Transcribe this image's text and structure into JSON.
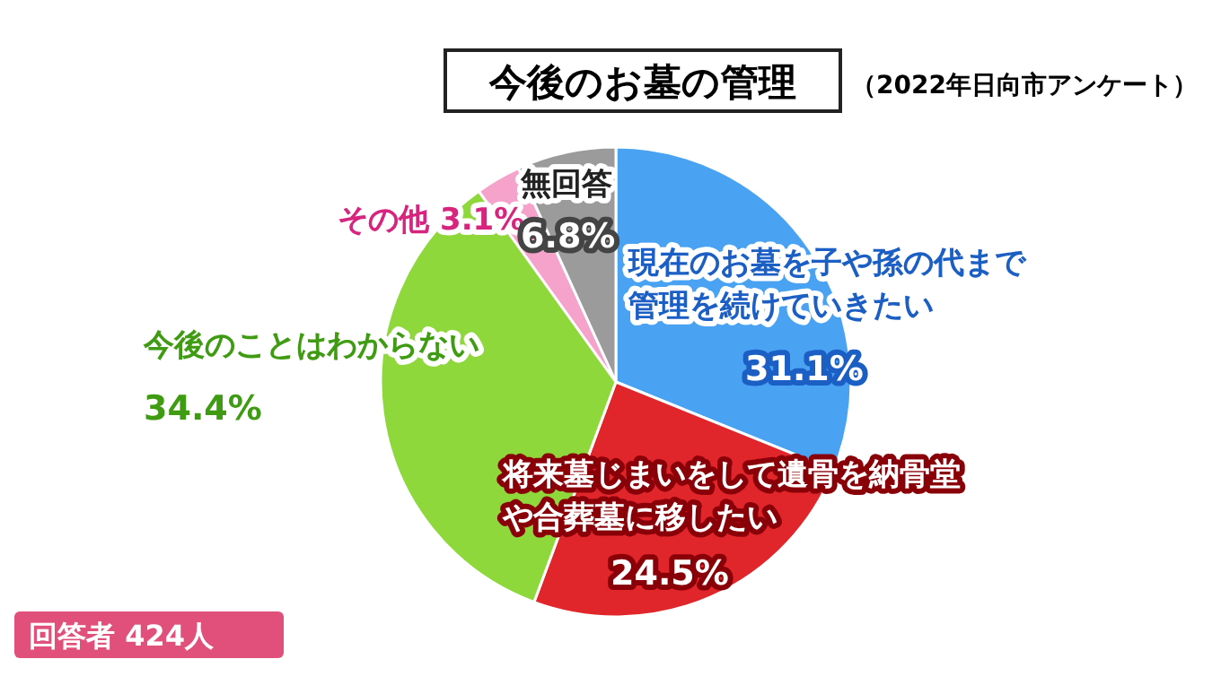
{
  "chart_data": {
    "type": "pie",
    "title": "今後のお墓の管理",
    "subtitle": "（2022年日向市アンケート）",
    "categories": [
      "現在のお墓を子や孫の代まで管理を続けていきたい",
      "将来墓じまいをして遺骨を納骨堂や合葬墓に移したい",
      "今後のことはわからない",
      "その他",
      "無回答"
    ],
    "values": [
      31.1,
      24.5,
      34.4,
      3.1,
      6.8
    ],
    "value_labels": [
      "31.1%",
      "24.5%",
      "34.4%",
      "3.1%",
      "6.8%"
    ],
    "colors": [
      "#4aa3f2",
      "#e0262b",
      "#8fd83c",
      "#f6a3cc",
      "#9b9b9b"
    ],
    "annotations": [
      "回答者 424人"
    ]
  }
}
